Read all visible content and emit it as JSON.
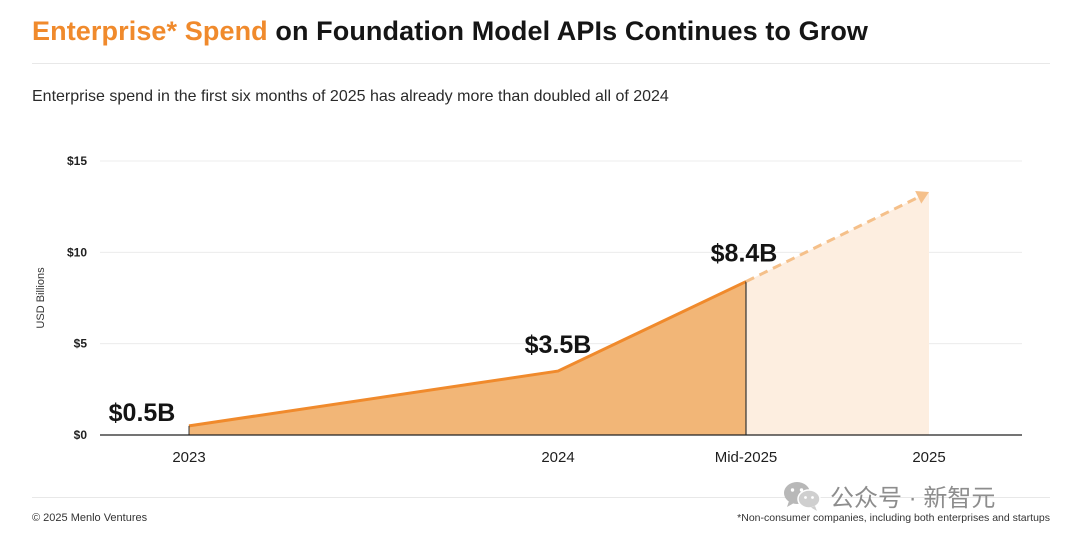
{
  "header": {
    "title_accent": "Enterprise* Spend",
    "title_rest": " on Foundation Model APIs Continues to Grow",
    "subtitle": "Enterprise spend in the first six months of 2025 has already more than doubled all of 2024"
  },
  "footer": {
    "copyright": "© 2025 Menlo Ventures",
    "footnote": "*Non-consumer companies, including both enterprises and startups"
  },
  "watermark": {
    "icon": "wechat-icon",
    "text": "公众号 · 新智元"
  },
  "colors": {
    "accent": "#f08a2c",
    "area_fill": "#f2b677",
    "projection_fill": "#fdeee0",
    "projection_line": "#f5c08a",
    "gridline": "#ececec",
    "axis": "#222222"
  },
  "chart_data": {
    "type": "area",
    "title": "",
    "ylabel": "USD Billions",
    "xlabel": "",
    "ylim": [
      0,
      15
    ],
    "y_ticks": [
      0,
      5,
      10,
      15
    ],
    "y_tick_labels": [
      "$0",
      "$5",
      "$10",
      "$15"
    ],
    "grid": true,
    "legend": "none",
    "categories": [
      "2023",
      "2024",
      "Mid-2025",
      "2025"
    ],
    "series": [
      {
        "values": [
          0.5,
          3.5,
          8.4,
          null
        ],
        "data_labels": [
          "$0.5B",
          "$3.5B",
          "$8.4B",
          ""
        ]
      },
      {
        "style": "dashed-projection",
        "values": [
          null,
          null,
          8.4,
          13.3
        ]
      }
    ]
  }
}
